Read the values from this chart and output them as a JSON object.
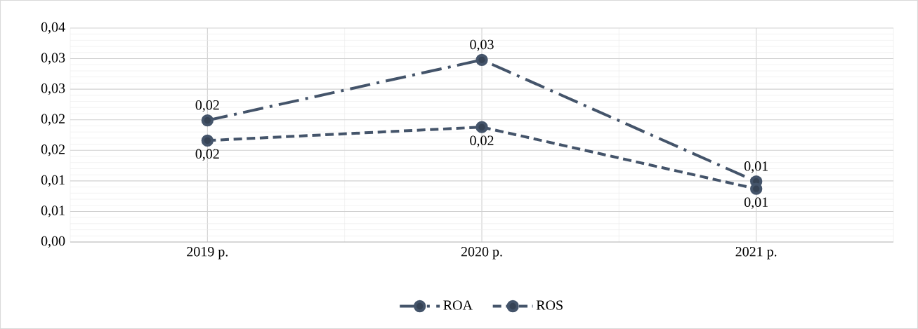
{
  "chart_data": {
    "type": "line",
    "categories": [
      "2019 р.",
      "2020 р.",
      "2021 р."
    ],
    "series": [
      {
        "name": "ROA",
        "color": "#44546a",
        "line_style": "dashdot",
        "values": [
          0.0199,
          0.0298,
          0.0099
        ],
        "value_labels": [
          "0,02",
          "0,03",
          "0,01"
        ]
      },
      {
        "name": "ROS",
        "color": "#44546a",
        "line_style": "dashed",
        "values": [
          0.0166,
          0.0188,
          0.0087
        ],
        "value_labels": [
          "0,02",
          "0,02",
          "0,01"
        ]
      }
    ],
    "ylim": [
      0,
      0.035
    ],
    "yticks": [
      {
        "value": 0,
        "label": "0,00"
      },
      {
        "value": 0.005,
        "label": "0,01"
      },
      {
        "value": 0.01,
        "label": "0,01"
      },
      {
        "value": 0.015,
        "label": "0,02"
      },
      {
        "value": 0.02,
        "label": "0,02"
      },
      {
        "value": 0.025,
        "label": "0,03"
      },
      {
        "value": 0.03,
        "label": "0,03"
      },
      {
        "value": 0.035,
        "label": "0,04"
      }
    ],
    "grid": true,
    "legend": "bottom",
    "marker": "circle"
  }
}
